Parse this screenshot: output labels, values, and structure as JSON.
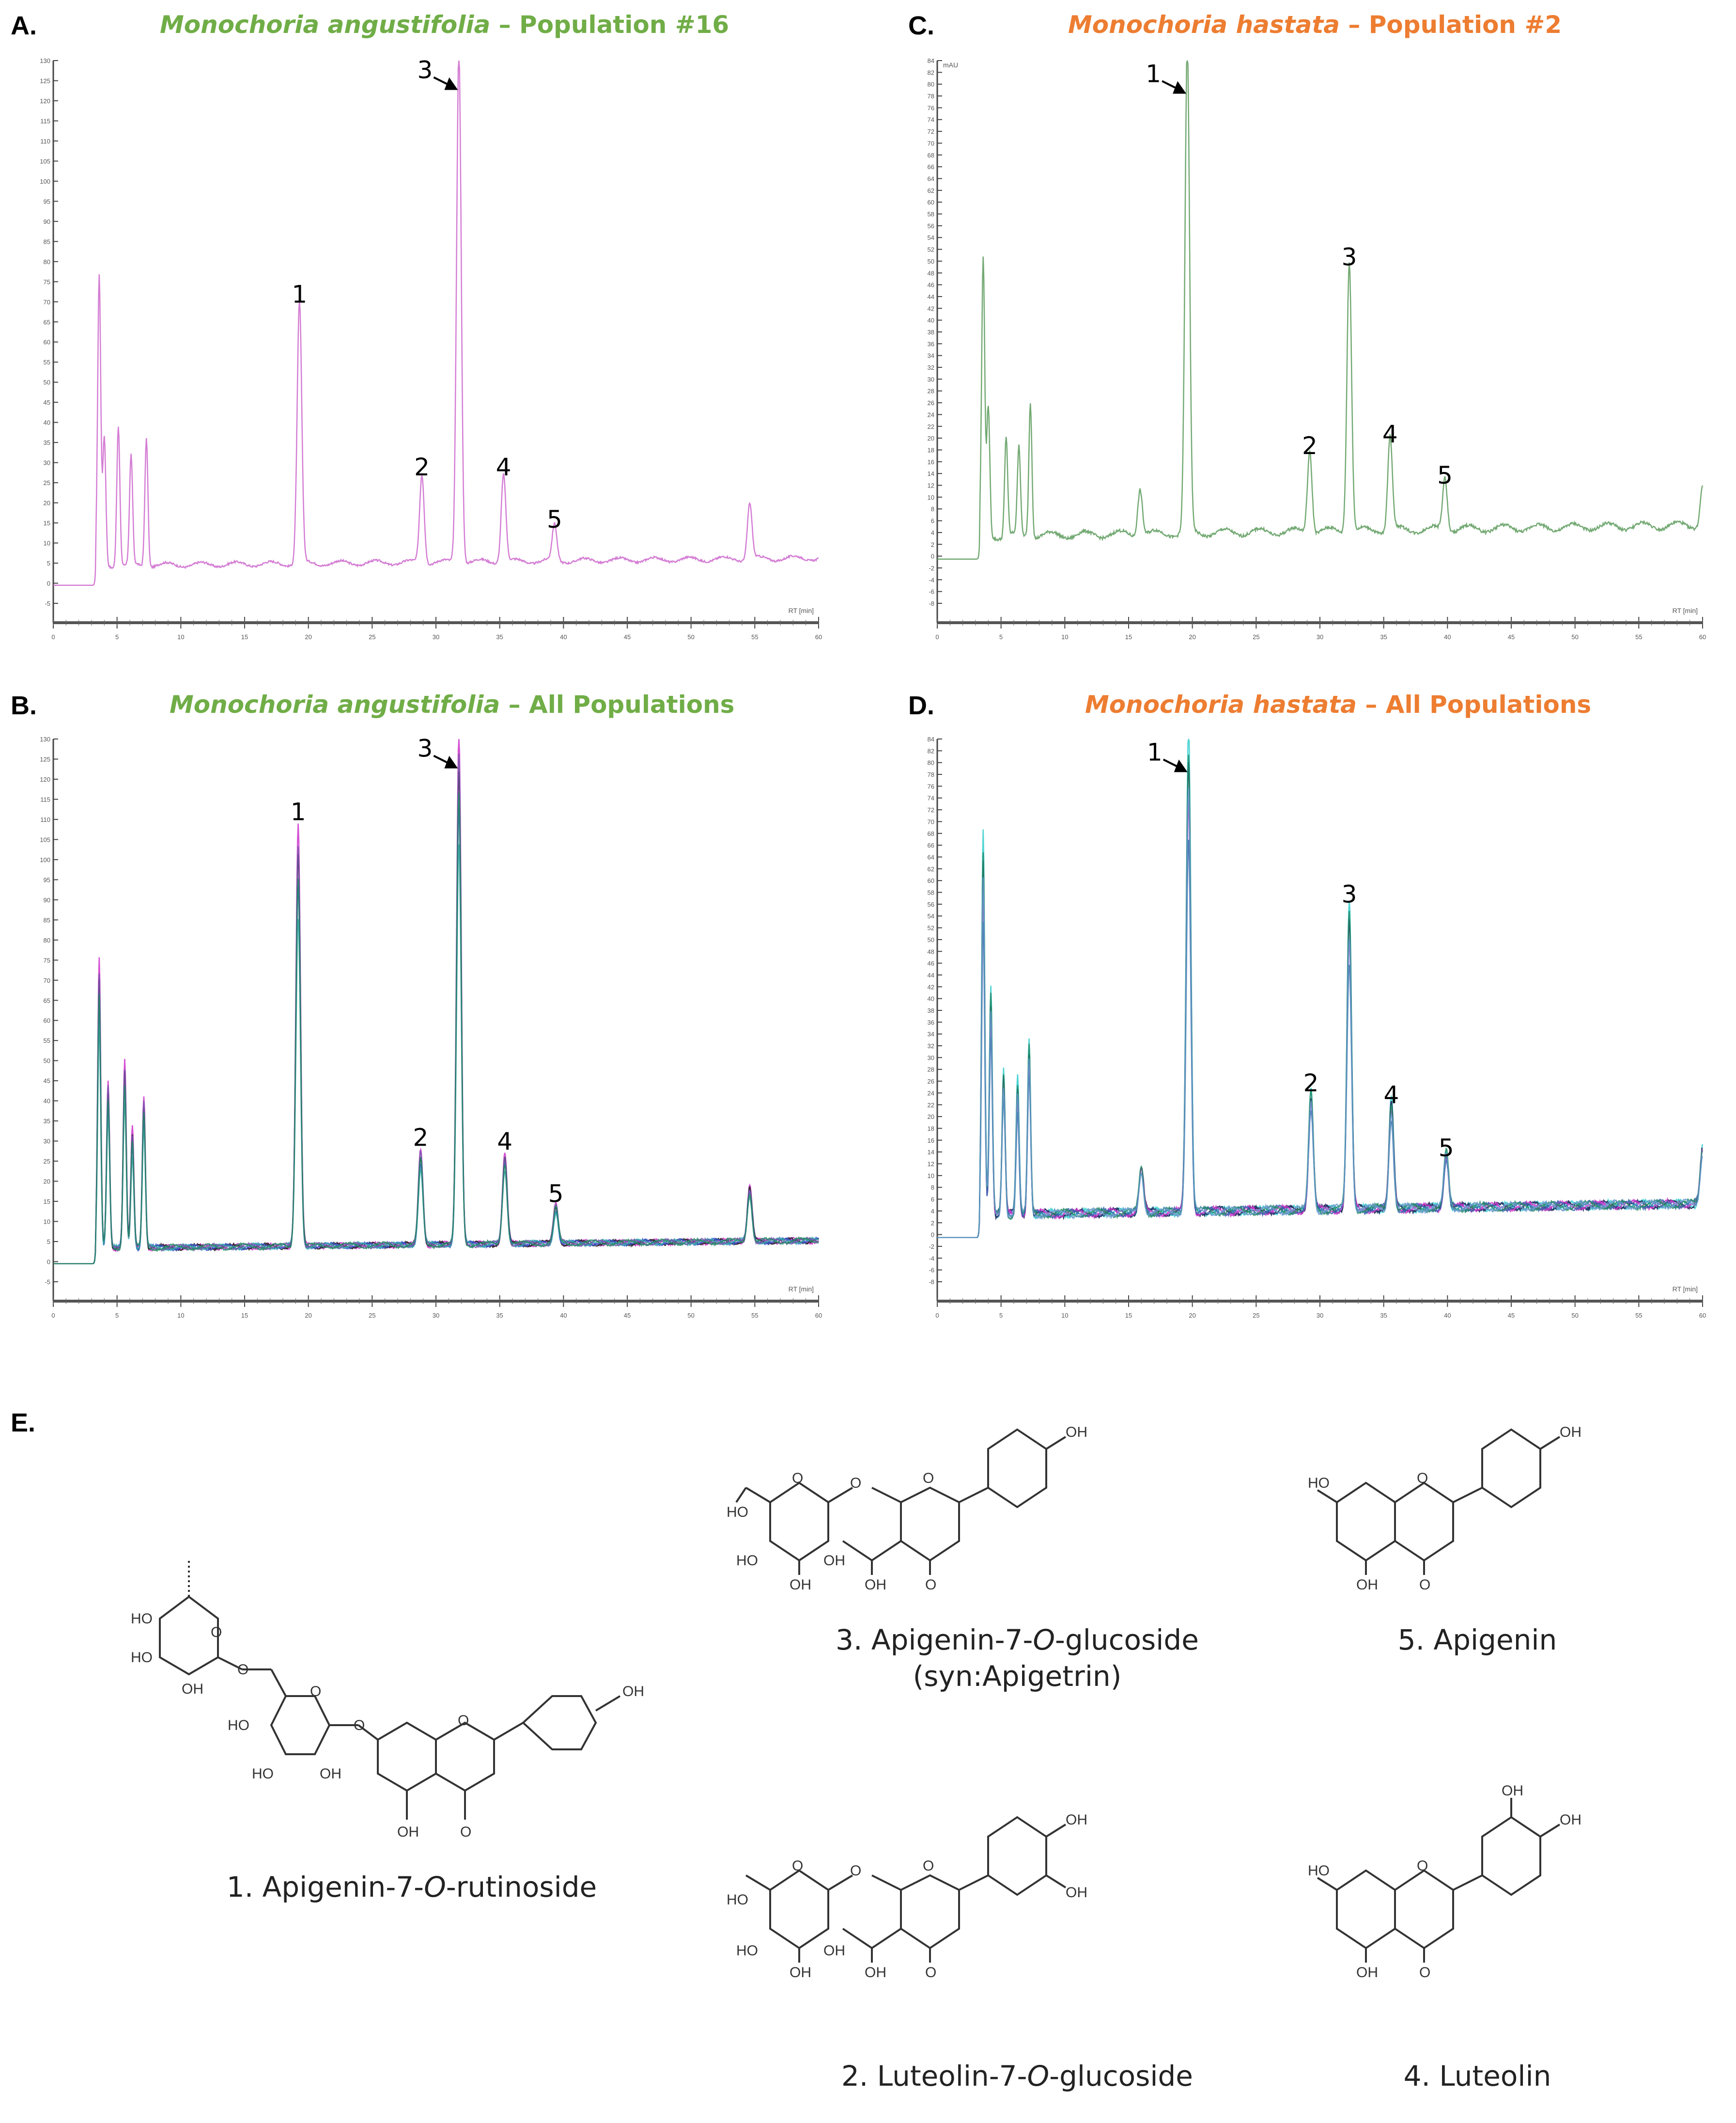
{
  "figure": {
    "panels": {
      "A": {
        "letter": "A.",
        "species": "Monochoria angustifolia",
        "suffix": " – Population #16",
        "color": "#70AD47"
      },
      "B": {
        "letter": "B.",
        "species": "Monochoria angustifolia",
        "suffix": " – All Populations",
        "color": "#70AD47"
      },
      "C": {
        "letter": "C.",
        "species": "Monochoria hastata",
        "suffix": " – Population #2",
        "color": "#ED7D31"
      },
      "D": {
        "letter": "D.",
        "species": "Monochoria hastata",
        "suffix": " – All Populations",
        "color": "#ED7D31"
      },
      "E": {
        "letter": "E."
      }
    },
    "compounds": [
      {
        "num": "1.",
        "name_pre": "Apigenin-7-",
        "name_it": "O",
        "name_post": "-rutinoside",
        "synonym": ""
      },
      {
        "num": "2.",
        "name_pre": "Luteolin-7-",
        "name_it": "O",
        "name_post": "-glucoside",
        "synonym": ""
      },
      {
        "num": "3.",
        "name_pre": "Apigenin-7-",
        "name_it": "O",
        "name_post": "-glucoside",
        "synonym": "(syn:Apigetrin)"
      },
      {
        "num": "4.",
        "name_pre": "Luteolin",
        "name_it": "",
        "name_post": "",
        "synonym": ""
      },
      {
        "num": "5.",
        "name_pre": "Apigenin",
        "name_it": "",
        "name_post": "",
        "synonym": ""
      }
    ],
    "x_axis_label": "RT [min]",
    "y_axis_unit": "mAU"
  },
  "chart_data": [
    {
      "panel": "A",
      "type": "line",
      "title": "Monochoria angustifolia – Population #16",
      "xlabel": "RT [min]",
      "ylabel": "mAU",
      "xlim": [
        0,
        60
      ],
      "ylim": [
        -5,
        130
      ],
      "xticks": [
        0,
        5,
        10,
        15,
        20,
        25,
        30,
        35,
        40,
        45,
        50,
        55,
        60
      ],
      "yticks": [
        -5,
        0,
        5,
        10,
        15,
        20,
        25,
        30,
        35,
        40,
        45,
        50,
        55,
        60,
        65,
        70,
        75,
        80,
        85,
        90,
        95,
        100,
        105,
        110,
        115,
        120,
        125,
        130
      ],
      "series_color": "#CC66CC",
      "peaks": [
        {
          "label": "",
          "rt": 3.6,
          "mAU": 72
        },
        {
          "label": "",
          "rt": 4.0,
          "mAU": 32
        },
        {
          "label": "",
          "rt": 5.1,
          "mAU": 35
        },
        {
          "label": "",
          "rt": 6.1,
          "mAU": 27
        },
        {
          "label": "",
          "rt": 7.3,
          "mAU": 32
        },
        {
          "label": "1",
          "rt": 19.3,
          "mAU": 65
        },
        {
          "label": "2",
          "rt": 28.9,
          "mAU": 22
        },
        {
          "label": "3",
          "rt": 31.8,
          "mAU": 128
        },
        {
          "label": "4",
          "rt": 35.3,
          "mAU": 22
        },
        {
          "label": "5",
          "rt": 39.3,
          "mAU": 9
        },
        {
          "label": "",
          "rt": 54.6,
          "mAU": 14
        }
      ],
      "baseline_mAU": 4
    },
    {
      "panel": "B",
      "type": "line",
      "title": "Monochoria angustifolia – All Populations",
      "xlabel": "RT [min]",
      "ylabel": "mAU",
      "xlim": [
        0,
        60
      ],
      "ylim": [
        -5,
        130
      ],
      "xticks": [
        0,
        5,
        10,
        15,
        20,
        25,
        30,
        35,
        40,
        45,
        50,
        55,
        60
      ],
      "yticks": [
        -5,
        0,
        5,
        10,
        15,
        20,
        25,
        30,
        35,
        40,
        45,
        50,
        55,
        60,
        65,
        70,
        75,
        80,
        85,
        90,
        95,
        100,
        105,
        110,
        115,
        120,
        125,
        130
      ],
      "series_colors": [
        "#CC33CC",
        "#1A1A1A",
        "#3355CC",
        "#33AAAA",
        "#7755AA",
        "#228866"
      ],
      "peaks": [
        {
          "label": "",
          "rt": 3.6,
          "mAU_max": 72
        },
        {
          "label": "",
          "rt": 4.3,
          "mAU_max": 42
        },
        {
          "label": "",
          "rt": 5.6,
          "mAU_max": 47
        },
        {
          "label": "",
          "rt": 6.2,
          "mAU_max": 30
        },
        {
          "label": "",
          "rt": 7.1,
          "mAU_max": 38
        },
        {
          "label": "1",
          "rt": 19.2,
          "mAU_max": 105
        },
        {
          "label": "2",
          "rt": 28.8,
          "mAU_max": 24
        },
        {
          "label": "3",
          "rt": 31.8,
          "mAU_max": 128
        },
        {
          "label": "4",
          "rt": 35.4,
          "mAU_max": 23
        },
        {
          "label": "5",
          "rt": 39.4,
          "mAU_max": 10
        },
        {
          "label": "",
          "rt": 54.6,
          "mAU_max": 14
        }
      ],
      "baseline_mAU": 3
    },
    {
      "panel": "C",
      "type": "line",
      "title": "Monochoria hastata – Population #2",
      "xlabel": "RT [min]",
      "ylabel": "mAU",
      "xlim": [
        0,
        60
      ],
      "ylim": [
        -8,
        84
      ],
      "xticks": [
        0,
        5,
        10,
        15,
        20,
        25,
        30,
        35,
        40,
        45,
        50,
        55,
        60
      ],
      "yticks": [
        -8,
        -6,
        -4,
        -2,
        0,
        2,
        4,
        6,
        8,
        10,
        12,
        14,
        16,
        18,
        20,
        22,
        24,
        26,
        28,
        30,
        32,
        34,
        36,
        38,
        40,
        42,
        44,
        46,
        48,
        50,
        52,
        54,
        56,
        58,
        60,
        62,
        64,
        66,
        68,
        70,
        72,
        74,
        76,
        78,
        80,
        82,
        84
      ],
      "series_color": "#5A9A5A",
      "peaks": [
        {
          "label": "",
          "rt": 3.6,
          "mAU": 47
        },
        {
          "label": "",
          "rt": 4.0,
          "mAU": 22
        },
        {
          "label": "",
          "rt": 5.4,
          "mAU": 17
        },
        {
          "label": "",
          "rt": 6.4,
          "mAU": 15
        },
        {
          "label": "",
          "rt": 7.3,
          "mAU": 23
        },
        {
          "label": "",
          "rt": 15.9,
          "mAU": 8
        },
        {
          "label": "1",
          "rt": 19.6,
          "mAU": 82
        },
        {
          "label": "2",
          "rt": 29.2,
          "mAU": 14
        },
        {
          "label": "3",
          "rt": 32.3,
          "mAU": 46
        },
        {
          "label": "4",
          "rt": 35.5,
          "mAU": 16
        },
        {
          "label": "5",
          "rt": 39.8,
          "mAU": 9
        },
        {
          "label": "",
          "rt": 60.0,
          "mAU": 7
        }
      ],
      "baseline_mAU": 3
    },
    {
      "panel": "D",
      "type": "line",
      "title": "Monochoria hastata – All Populations",
      "xlabel": "RT [min]",
      "ylabel": "mAU",
      "xlim": [
        0,
        60
      ],
      "ylim": [
        -8,
        84
      ],
      "xticks": [
        0,
        5,
        10,
        15,
        20,
        25,
        30,
        35,
        40,
        45,
        50,
        55,
        60
      ],
      "yticks": [
        -8,
        -6,
        -4,
        -2,
        0,
        2,
        4,
        6,
        8,
        10,
        12,
        14,
        16,
        18,
        20,
        22,
        24,
        26,
        28,
        30,
        32,
        34,
        36,
        38,
        40,
        42,
        44,
        46,
        48,
        50,
        52,
        54,
        56,
        58,
        60,
        62,
        64,
        66,
        68,
        70,
        72,
        74,
        76,
        78,
        80,
        82,
        84
      ],
      "series_colors": [
        "#33CCCC",
        "#1A1A55",
        "#CC33CC",
        "#3366AA",
        "#228866",
        "#6699CC"
      ],
      "peaks": [
        {
          "label": "",
          "rt": 3.6,
          "mAU_max": 65
        },
        {
          "label": "",
          "rt": 4.2,
          "mAU_max": 39
        },
        {
          "label": "",
          "rt": 5.2,
          "mAU_max": 25
        },
        {
          "label": "",
          "rt": 6.3,
          "mAU_max": 23
        },
        {
          "label": "",
          "rt": 7.2,
          "mAU_max": 30
        },
        {
          "label": "",
          "rt": 16.0,
          "mAU_max": 8
        },
        {
          "label": "1",
          "rt": 19.7,
          "mAU_max": 82
        },
        {
          "label": "2",
          "rt": 29.3,
          "mAU_max": 21
        },
        {
          "label": "3",
          "rt": 32.3,
          "mAU_max": 53
        },
        {
          "label": "4",
          "rt": 35.6,
          "mAU_max": 19
        },
        {
          "label": "5",
          "rt": 39.9,
          "mAU_max": 10
        },
        {
          "label": "",
          "rt": 60.0,
          "mAU_max": 10
        }
      ],
      "baseline_mAU": 3
    }
  ]
}
